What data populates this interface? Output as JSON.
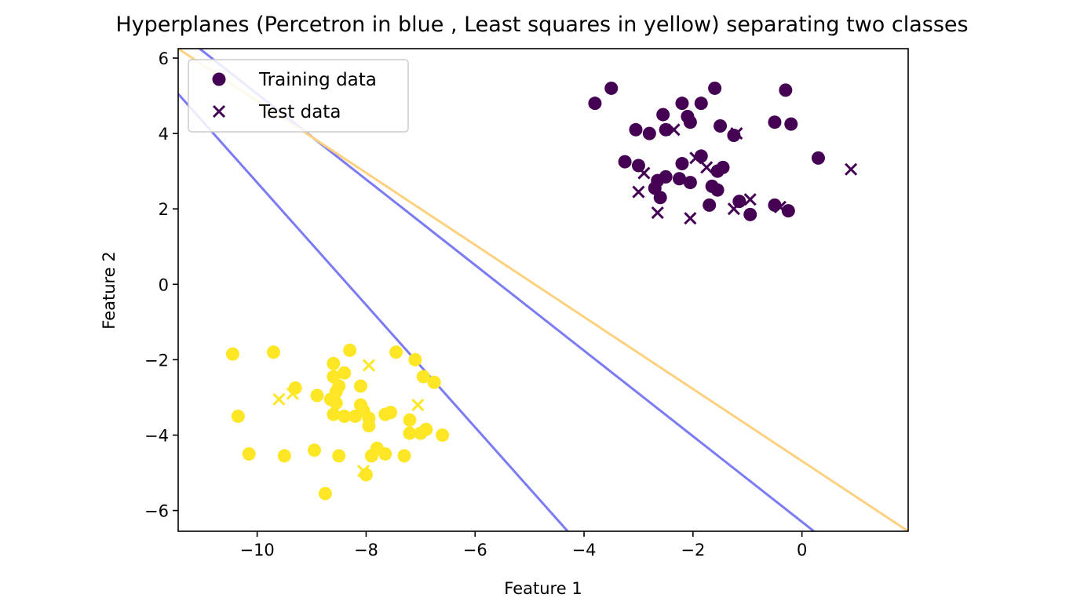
{
  "chart_data": {
    "type": "scatter",
    "title": "Hyperplanes (Percetron in blue , Least squares in yellow) separating two classes",
    "xlabel": "Feature 1",
    "ylabel": "Feature 2",
    "xlim": [
      -11.45,
      1.95
    ],
    "ylim": [
      -6.55,
      6.25
    ],
    "xticks": [
      -10,
      -8,
      -6,
      -4,
      -2,
      0
    ],
    "xtick_labels": [
      "−10",
      "−8",
      "−6",
      "−4",
      "−2",
      "0"
    ],
    "yticks": [
      -6,
      -4,
      -2,
      0,
      2,
      4,
      6
    ],
    "ytick_labels": [
      "−6",
      "−4",
      "−2",
      "0",
      "2",
      "4",
      "6"
    ],
    "grid": false,
    "legend": {
      "position": "upper-left",
      "entries": [
        {
          "label": "Training data",
          "marker": "circle"
        },
        {
          "label": "Test data",
          "marker": "x"
        }
      ]
    },
    "colors": {
      "class_purple": "#440154",
      "class_yellow": "#fde725",
      "perceptron": "#7b7bf5",
      "least_squares": "#fdd17f"
    },
    "lines": [
      {
        "x": [
          -11.45,
          -4.3
        ],
        "y": [
          5.05,
          -6.55
        ],
        "color": "#7b7bf5"
      },
      {
        "x": [
          -11.1,
          0.22
        ],
        "y": [
          6.3,
          -6.55
        ],
        "color": "#7b7bf5"
      },
      {
        "x": [
          -11.45,
          1.95
        ],
        "y": [
          6.25,
          -6.55
        ],
        "color": "#fdd17f"
      }
    ],
    "series": [
      {
        "name": "Training data",
        "marker": "circle",
        "points": [
          {
            "x": -3.8,
            "y": 4.8,
            "c": 0
          },
          {
            "x": -3.5,
            "y": 5.2,
            "c": 0
          },
          {
            "x": -1.6,
            "y": 5.2,
            "c": 0
          },
          {
            "x": -0.3,
            "y": 5.15,
            "c": 0
          },
          {
            "x": -2.2,
            "y": 4.8,
            "c": 0
          },
          {
            "x": -1.85,
            "y": 4.8,
            "c": 0
          },
          {
            "x": -2.55,
            "y": 4.5,
            "c": 0
          },
          {
            "x": -2.1,
            "y": 4.45,
            "c": 0
          },
          {
            "x": -2.05,
            "y": 4.3,
            "c": 0
          },
          {
            "x": -0.5,
            "y": 4.3,
            "c": 0
          },
          {
            "x": -0.2,
            "y": 4.25,
            "c": 0
          },
          {
            "x": -1.5,
            "y": 4.2,
            "c": 0
          },
          {
            "x": -3.05,
            "y": 4.1,
            "c": 0
          },
          {
            "x": -2.5,
            "y": 4.1,
            "c": 0
          },
          {
            "x": -2.8,
            "y": 4.0,
            "c": 0
          },
          {
            "x": -1.25,
            "y": 3.95,
            "c": 0
          },
          {
            "x": 0.3,
            "y": 3.35,
            "c": 0
          },
          {
            "x": -1.85,
            "y": 3.4,
            "c": 0
          },
          {
            "x": -3.25,
            "y": 3.25,
            "c": 0
          },
          {
            "x": -3.0,
            "y": 3.15,
            "c": 0
          },
          {
            "x": -2.2,
            "y": 3.2,
            "c": 0
          },
          {
            "x": -1.45,
            "y": 3.1,
            "c": 0
          },
          {
            "x": -1.55,
            "y": 3.0,
            "c": 0
          },
          {
            "x": -2.5,
            "y": 2.85,
            "c": 0
          },
          {
            "x": -2.25,
            "y": 2.8,
            "c": 0
          },
          {
            "x": -2.65,
            "y": 2.75,
            "c": 0
          },
          {
            "x": -2.05,
            "y": 2.7,
            "c": 0
          },
          {
            "x": -2.7,
            "y": 2.55,
            "c": 0
          },
          {
            "x": -1.65,
            "y": 2.6,
            "c": 0
          },
          {
            "x": -1.55,
            "y": 2.5,
            "c": 0
          },
          {
            "x": -2.6,
            "y": 2.3,
            "c": 0
          },
          {
            "x": -1.15,
            "y": 2.2,
            "c": 0
          },
          {
            "x": -1.7,
            "y": 2.1,
            "c": 0
          },
          {
            "x": -0.5,
            "y": 2.1,
            "c": 0
          },
          {
            "x": -0.25,
            "y": 1.95,
            "c": 0
          },
          {
            "x": -0.95,
            "y": 1.85,
            "c": 0
          },
          {
            "x": -10.45,
            "y": -1.85,
            "c": 1
          },
          {
            "x": -9.7,
            "y": -1.8,
            "c": 1
          },
          {
            "x": -8.3,
            "y": -1.75,
            "c": 1
          },
          {
            "x": -7.45,
            "y": -1.8,
            "c": 1
          },
          {
            "x": -7.1,
            "y": -2.0,
            "c": 1
          },
          {
            "x": -8.6,
            "y": -2.1,
            "c": 1
          },
          {
            "x": -8.4,
            "y": -2.35,
            "c": 1
          },
          {
            "x": -8.6,
            "y": -2.45,
            "c": 1
          },
          {
            "x": -6.95,
            "y": -2.45,
            "c": 1
          },
          {
            "x": -6.75,
            "y": -2.6,
            "c": 1
          },
          {
            "x": -8.5,
            "y": -2.7,
            "c": 1
          },
          {
            "x": -8.1,
            "y": -2.7,
            "c": 1
          },
          {
            "x": -9.3,
            "y": -2.75,
            "c": 1
          },
          {
            "x": -8.55,
            "y": -2.85,
            "c": 1
          },
          {
            "x": -8.9,
            "y": -2.95,
            "c": 1
          },
          {
            "x": -8.65,
            "y": -3.05,
            "c": 1
          },
          {
            "x": -8.55,
            "y": -3.15,
            "c": 1
          },
          {
            "x": -8.1,
            "y": -3.2,
            "c": 1
          },
          {
            "x": -8.05,
            "y": -3.35,
            "c": 1
          },
          {
            "x": -8.6,
            "y": -3.45,
            "c": 1
          },
          {
            "x": -7.55,
            "y": -3.4,
            "c": 1
          },
          {
            "x": -7.65,
            "y": -3.45,
            "c": 1
          },
          {
            "x": -8.4,
            "y": -3.5,
            "c": 1
          },
          {
            "x": -8.2,
            "y": -3.5,
            "c": 1
          },
          {
            "x": -7.95,
            "y": -3.55,
            "c": 1
          },
          {
            "x": -7.2,
            "y": -3.6,
            "c": 1
          },
          {
            "x": -10.35,
            "y": -3.5,
            "c": 1
          },
          {
            "x": -7.95,
            "y": -3.75,
            "c": 1
          },
          {
            "x": -6.9,
            "y": -3.85,
            "c": 1
          },
          {
            "x": -7.0,
            "y": -3.95,
            "c": 1
          },
          {
            "x": -7.2,
            "y": -3.95,
            "c": 1
          },
          {
            "x": -6.6,
            "y": -4.0,
            "c": 1
          },
          {
            "x": -7.8,
            "y": -4.35,
            "c": 1
          },
          {
            "x": -8.95,
            "y": -4.4,
            "c": 1
          },
          {
            "x": -10.15,
            "y": -4.5,
            "c": 1
          },
          {
            "x": -7.65,
            "y": -4.5,
            "c": 1
          },
          {
            "x": -9.5,
            "y": -4.55,
            "c": 1
          },
          {
            "x": -8.5,
            "y": -4.55,
            "c": 1
          },
          {
            "x": -7.9,
            "y": -4.55,
            "c": 1
          },
          {
            "x": -7.3,
            "y": -4.55,
            "c": 1
          },
          {
            "x": -8.0,
            "y": -5.05,
            "c": 1
          },
          {
            "x": -8.75,
            "y": -5.55,
            "c": 1
          }
        ]
      },
      {
        "name": "Test data",
        "marker": "x",
        "points": [
          {
            "x": -2.35,
            "y": 4.1,
            "c": 0
          },
          {
            "x": -1.2,
            "y": 4.0,
            "c": 0
          },
          {
            "x": -1.95,
            "y": 3.35,
            "c": 0
          },
          {
            "x": -1.75,
            "y": 3.1,
            "c": 0
          },
          {
            "x": 0.9,
            "y": 3.05,
            "c": 0
          },
          {
            "x": -2.9,
            "y": 2.95,
            "c": 0
          },
          {
            "x": -3.0,
            "y": 2.45,
            "c": 0
          },
          {
            "x": -0.95,
            "y": 2.25,
            "c": 0
          },
          {
            "x": -1.25,
            "y": 2.0,
            "c": 0
          },
          {
            "x": -0.4,
            "y": 2.05,
            "c": 0
          },
          {
            "x": -2.65,
            "y": 1.9,
            "c": 0
          },
          {
            "x": -2.05,
            "y": 1.75,
            "c": 0
          },
          {
            "x": -7.95,
            "y": -2.15,
            "c": 1
          },
          {
            "x": -9.35,
            "y": -2.9,
            "c": 1
          },
          {
            "x": -9.6,
            "y": -3.05,
            "c": 1
          },
          {
            "x": -7.05,
            "y": -3.2,
            "c": 1
          },
          {
            "x": -8.05,
            "y": -4.95,
            "c": 1
          }
        ]
      }
    ]
  }
}
